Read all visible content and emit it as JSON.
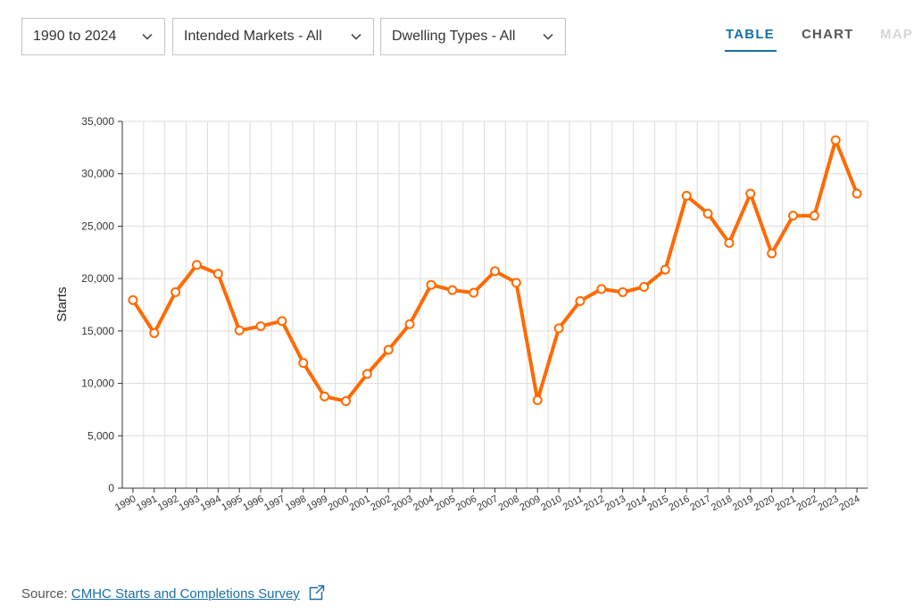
{
  "filters": {
    "years": {
      "label": "1990 to 2024"
    },
    "markets": {
      "label": "Intended Markets - All"
    },
    "dwelling": {
      "label": "Dwelling Types - All"
    }
  },
  "tabs": {
    "table": "TABLE",
    "chart": "CHART",
    "map": "MAP"
  },
  "source": {
    "prefix": "Source:",
    "link_text": "CMHC Starts and Completions Survey"
  },
  "icons": {
    "dropdown": "chevron-down-icon",
    "external": "external-link-icon"
  },
  "colors": {
    "series": "#ff6a00",
    "active_tab": "#1a6fa3",
    "link": "#1a6fa3",
    "grid": "#dcdcdc"
  },
  "chart_data": {
    "type": "line",
    "ylabel": "Starts",
    "xlabel": "",
    "ylim": [
      0,
      35000
    ],
    "yticks": [
      0,
      5000,
      10000,
      15000,
      20000,
      25000,
      30000,
      35000
    ],
    "ytick_labels": [
      "0",
      "5,000",
      "10,000",
      "15,000",
      "20,000",
      "25,000",
      "30,000",
      "35,000"
    ],
    "grid": true,
    "categories": [
      "1990",
      "1991",
      "1992",
      "1993",
      "1994",
      "1995",
      "1996",
      "1997",
      "1998",
      "1999",
      "2000",
      "2001",
      "2002",
      "2003",
      "2004",
      "2005",
      "2006",
      "2007",
      "2008",
      "2009",
      "2010",
      "2011",
      "2012",
      "2013",
      "2014",
      "2015",
      "2016",
      "2017",
      "2018",
      "2019",
      "2020",
      "2021",
      "2022",
      "2023",
      "2024"
    ],
    "series": [
      {
        "values": [
          17950,
          14800,
          18700,
          21300,
          20450,
          15050,
          15450,
          15950,
          11950,
          8750,
          8300,
          10900,
          13200,
          15650,
          19400,
          18900,
          18650,
          20700,
          19600,
          8400,
          15250,
          17850,
          19000,
          18700,
          19200,
          20850,
          27900,
          26200,
          23400,
          28100,
          22400,
          26000,
          26000,
          33200,
          28100
        ]
      }
    ]
  }
}
